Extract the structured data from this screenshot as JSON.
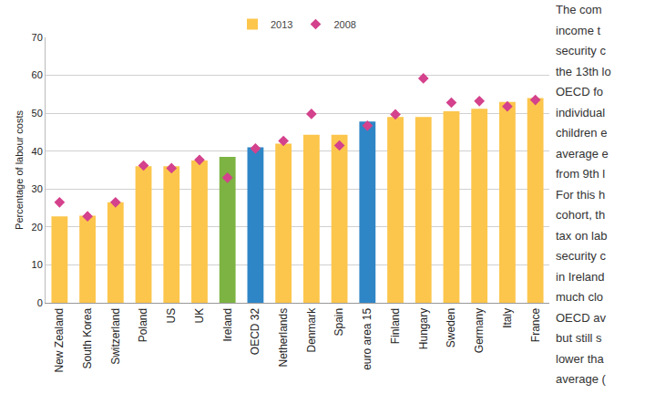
{
  "chart_data": {
    "type": "bar",
    "y_label": "Percentage of labour costs",
    "categories": [
      "New Zealand",
      "South Korea",
      "Switzerland",
      "Poland",
      "US",
      "UK",
      "Ireland",
      "OECD 32",
      "Netherlands",
      "Denmark",
      "Spain",
      "euro area 15",
      "Finland",
      "Hungary",
      "Sweden",
      "Germany",
      "Italy",
      "France"
    ],
    "series": [
      {
        "name": "2013",
        "type": "bar",
        "colors": [
          "#fcc64c",
          "#fcc64c",
          "#fcc64c",
          "#fcc64c",
          "#fcc64c",
          "#fcc64c",
          "#7cb342",
          "#2f86c6",
          "#fcc64c",
          "#fcc64c",
          "#fcc64c",
          "#2f86c6",
          "#fcc64c",
          "#fcc64c",
          "#fcc64c",
          "#fcc64c",
          "#fcc64c",
          "#fcc64c"
        ],
        "values": [
          22.8,
          23,
          26.5,
          36,
          36,
          37.5,
          38.5,
          41,
          42,
          44.3,
          44.3,
          47.8,
          49,
          49,
          50.5,
          51.2,
          53,
          54
        ]
      },
      {
        "name": "2008",
        "type": "scatter",
        "marker": "diamond",
        "color": "#d4418c",
        "values": [
          26.5,
          22.8,
          26.5,
          36.2,
          35.5,
          37.7,
          33,
          40.7,
          42.7,
          49.8,
          41.5,
          46.7,
          49.7,
          59.2,
          52.8,
          53.2,
          51.8,
          53.5
        ]
      }
    ],
    "ylim": [
      0,
      70
    ],
    "yticks": [
      0,
      10,
      20,
      30,
      40,
      50,
      60,
      70
    ],
    "grid": true,
    "legend": "top"
  },
  "side_text": [
    "The com",
    "income t",
    "security c",
    "the 13th lo",
    "OECD fo",
    "individual",
    "children e",
    "average e",
    "from 9th l",
    "For this h",
    "cohort, th",
    "tax on lab",
    "security c",
    "in Ireland",
    "much clo",
    "OECD av",
    "but still s",
    "lower tha",
    "average ("
  ]
}
